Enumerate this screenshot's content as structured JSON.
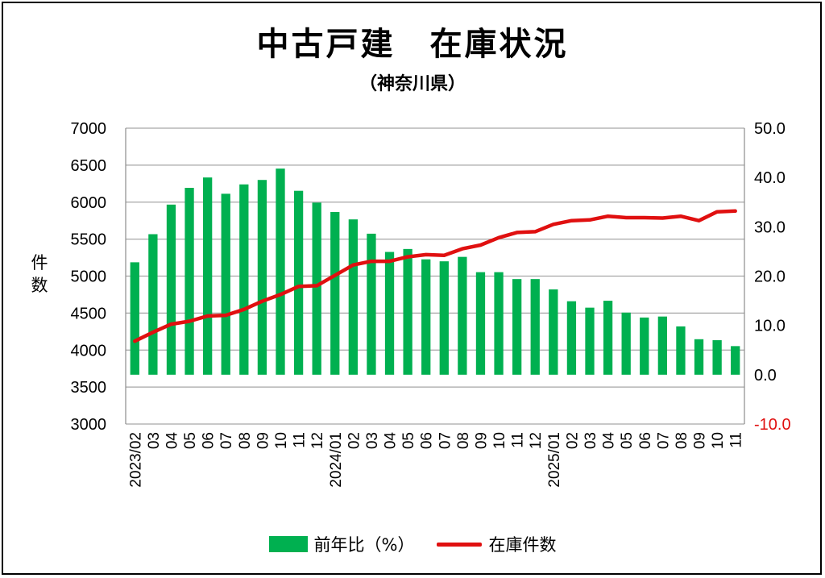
{
  "title": "中古戸建　在庫状況",
  "subtitle": "（神奈川県）",
  "ylabel_left": "件数",
  "colors": {
    "bar": "#00b050",
    "line": "#e01010",
    "negative_tick": "#e01010",
    "grid": "#a6a6a6"
  },
  "legend": {
    "bar_label": "前年比（%）",
    "line_label": "在庫件数"
  },
  "chart_data": {
    "type": "bar",
    "categories": [
      "2023/02",
      "03",
      "04",
      "05",
      "06",
      "07",
      "08",
      "09",
      "10",
      "11",
      "12",
      "2024/01",
      "02",
      "03",
      "04",
      "05",
      "06",
      "07",
      "08",
      "09",
      "10",
      "11",
      "12",
      "2025/01",
      "02",
      "03",
      "04",
      "05",
      "06",
      "07",
      "08",
      "09",
      "10",
      "11"
    ],
    "left_axis": {
      "ylim": [
        3000,
        7000
      ],
      "ticks": [
        "3000",
        "3500",
        "4000",
        "4500",
        "5000",
        "5500",
        "6000",
        "6500",
        "7000"
      ]
    },
    "right_axis": {
      "ylim": [
        -10,
        50
      ],
      "ticks": [
        "-10.0",
        "0.0",
        "10.0",
        "20.0",
        "30.0",
        "40.0",
        "50.0"
      ]
    },
    "grid": true,
    "legend_position": "bottom",
    "series": [
      {
        "name": "前年比（%）",
        "type": "bar",
        "axis": "right",
        "values": [
          22.8,
          28.5,
          34.5,
          37.9,
          40.0,
          36.7,
          38.6,
          39.5,
          41.8,
          37.3,
          34.9,
          33.0,
          31.5,
          28.6,
          24.9,
          25.5,
          23.4,
          23.0,
          23.9,
          20.8,
          20.8,
          19.4,
          19.4,
          17.3,
          14.9,
          13.6,
          15.0,
          12.6,
          11.6,
          11.8,
          9.8,
          7.2,
          7.0,
          5.8
        ]
      },
      {
        "name": "在庫件数",
        "type": "line",
        "axis": "left",
        "values": [
          4120,
          4240,
          4350,
          4390,
          4460,
          4470,
          4550,
          4660,
          4750,
          4860,
          4870,
          5010,
          5150,
          5200,
          5200,
          5260,
          5290,
          5280,
          5370,
          5420,
          5520,
          5590,
          5600,
          5700,
          5750,
          5760,
          5810,
          5790,
          5790,
          5785,
          5810,
          5750,
          5870,
          5880
        ]
      }
    ]
  }
}
